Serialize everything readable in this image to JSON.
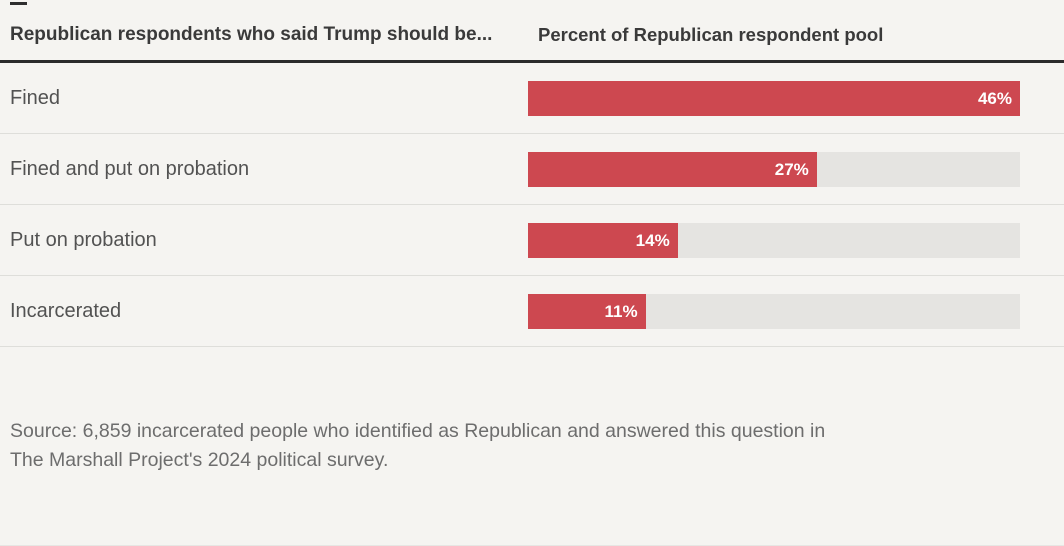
{
  "header": {
    "left_title": "Republican respondents who said Trump should be...",
    "right_title": "Percent of Republican respondent pool"
  },
  "rows": [
    {
      "label": "Fined",
      "value": 46,
      "value_label": "46%",
      "width_pct": "100%"
    },
    {
      "label": "Fined and put on probation",
      "value": 27,
      "value_label": "27%",
      "width_pct": "58.70%"
    },
    {
      "label": "Put on probation",
      "value": 14,
      "value_label": "14%",
      "width_pct": "30.43%"
    },
    {
      "label": "Incarcerated",
      "value": 11,
      "value_label": "11%",
      "width_pct": "23.91%"
    }
  ],
  "source": {
    "line1": "Source: 6,859 incarcerated people who identified as Republican and answered this question in",
    "line2": "The Marshall Project's 2024 political survey."
  },
  "colors": {
    "bar_fill": "#cd4850",
    "bar_track": "#e5e4e1",
    "background": "#f5f4f1",
    "rule": "#2b2b2b"
  },
  "chart_data": {
    "type": "bar",
    "orientation": "horizontal",
    "title": "Republican respondents who said Trump should be...",
    "xlabel": "Percent of Republican respondent pool",
    "categories": [
      "Fined",
      "Fined and put on probation",
      "Put on probation",
      "Incarcerated"
    ],
    "values": [
      46,
      27,
      14,
      11
    ],
    "unit": "percent",
    "xlim": [
      0,
      46
    ],
    "data_labels": [
      "46%",
      "27%",
      "14%",
      "11%"
    ],
    "grid": false,
    "legend": false,
    "source": "Source: 6,859 incarcerated people who identified as Republican and answered this question in The Marshall Project's 2024 political survey."
  }
}
